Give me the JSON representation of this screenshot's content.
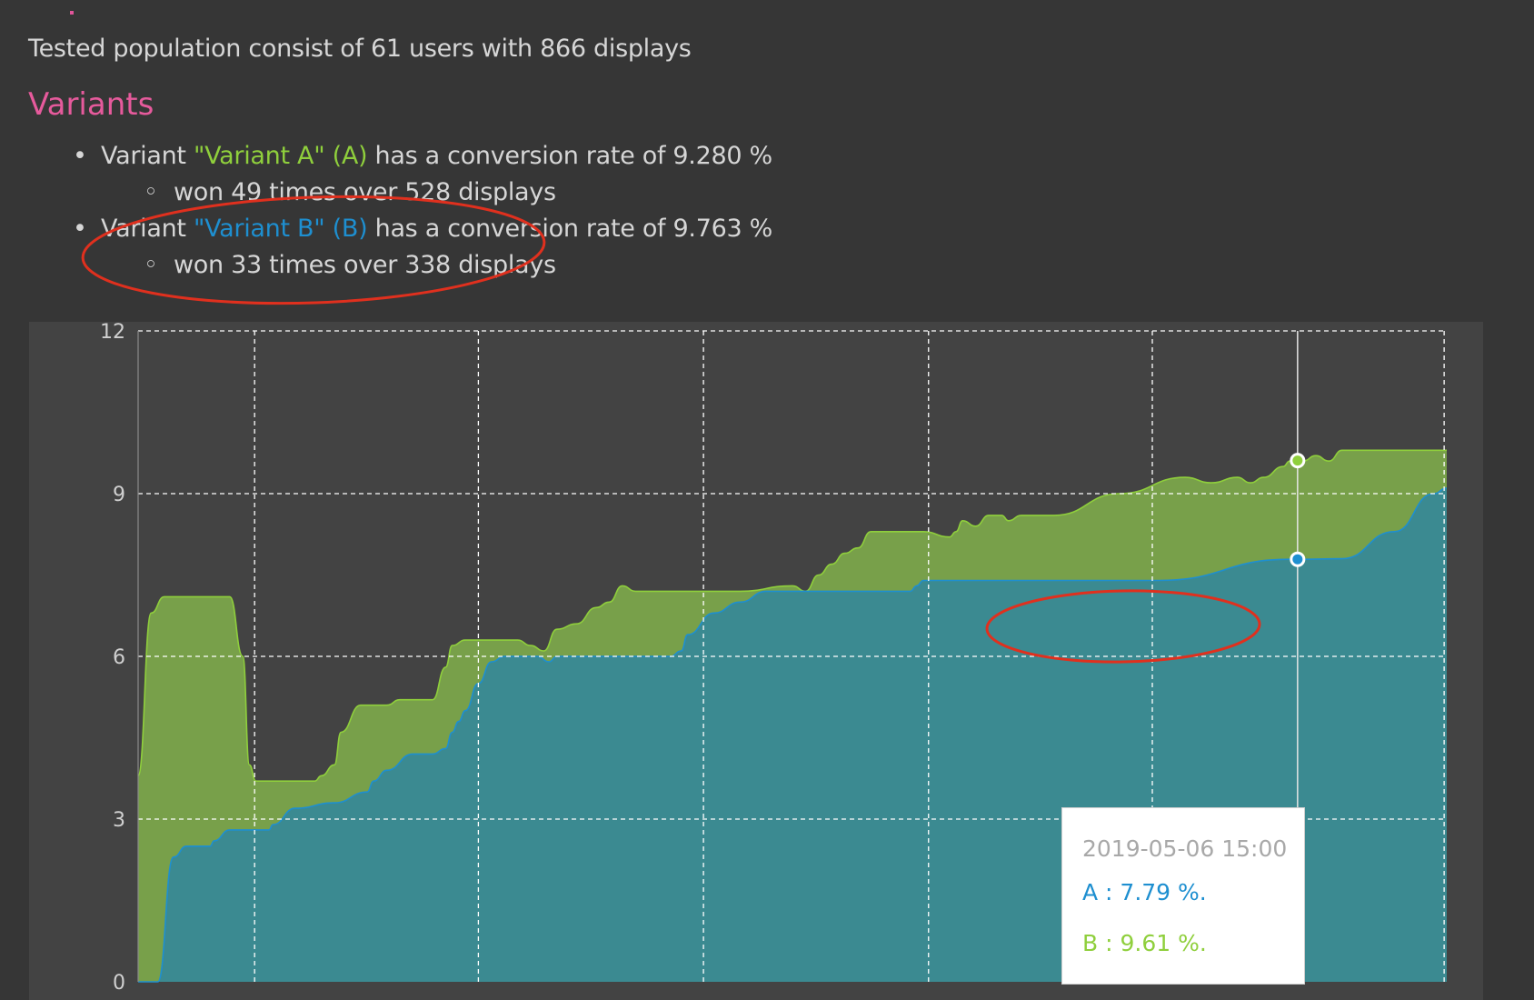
{
  "summary": {
    "prefix": "Tested population consist of ",
    "users": "61",
    "middle": " users with ",
    "displays": "866",
    "suffix": " displays"
  },
  "variants_heading": "Variants",
  "variants": [
    {
      "prefix": "Variant ",
      "name": "\"Variant A\" (A)",
      "rate_text": " has a conversion rate of 9.280 %",
      "won_text": "won 49 times over 528 displays"
    },
    {
      "prefix": "Variant ",
      "name": "\"Variant B\" (B)",
      "rate_text": " has a conversion rate of 9.763 %",
      "won_text": "won 33 times over 338 displays"
    }
  ],
  "tooltip": {
    "date": "2019-05-06 15:00",
    "a_text": "A : 7.79 %.",
    "b_text": "B : 9.61 %."
  },
  "colors": {
    "series_a": "#3b8a91",
    "series_a_line": "#1e8fd0",
    "series_b": "#78a04a",
    "series_b_line": "#8fcf3c",
    "annotation": "#e0301e",
    "accent_heading": "#e65a9c"
  },
  "chart_data": {
    "type": "area",
    "ylim": [
      0,
      12
    ],
    "yticks": [
      "0",
      "3",
      "6",
      "9",
      "12"
    ],
    "xlim": [
      0,
      100
    ],
    "hover_x": 88.6,
    "grid": true,
    "series": [
      {
        "name": "A",
        "x": [
          0,
          1.5,
          2.7,
          3.7,
          5.5,
          5.8,
          7,
          10,
          10.3,
          12,
          15,
          17.5,
          18,
          19,
          21,
          22.5,
          23.5,
          24,
          24.5,
          25,
          26,
          27,
          28,
          29,
          30.5,
          31.4,
          32,
          33.5,
          36,
          40,
          40.7,
          41.5,
          42,
          44,
          46,
          48,
          50,
          54,
          55,
          57,
          59,
          59.5,
          60,
          61,
          62,
          63,
          64,
          70,
          78,
          88,
          88.6,
          92,
          96,
          99,
          100
        ],
        "values": [
          0,
          0,
          2.3,
          2.5,
          2.5,
          2.6,
          2.8,
          2.8,
          2.9,
          3.2,
          3.3,
          3.5,
          3.7,
          3.9,
          4.2,
          4.2,
          4.3,
          4.6,
          4.8,
          5.0,
          5.5,
          5.9,
          6.0,
          6.0,
          6.0,
          5.9,
          6.0,
          6.0,
          6.0,
          6.0,
          6.0,
          6.1,
          6.4,
          6.8,
          7.0,
          7.2,
          7.2,
          7.2,
          7.2,
          7.2,
          7.2,
          7.3,
          7.4,
          7.4,
          7.4,
          7.4,
          7.4,
          7.4,
          7.4,
          7.79,
          7.79,
          7.8,
          8.3,
          9.0,
          9.1
        ]
      },
      {
        "name": "B",
        "x": [
          0,
          1,
          2,
          3,
          7,
          8,
          8.5,
          9,
          10,
          13,
          13.5,
          14,
          15,
          15.5,
          17,
          18,
          19,
          20,
          22.5,
          23.5,
          24,
          25,
          28,
          29,
          30,
          31,
          32,
          33.5,
          35,
          36,
          37,
          38,
          39,
          40,
          46,
          50,
          51,
          52,
          53,
          54,
          55,
          56,
          57,
          58,
          60,
          62,
          62.5,
          63,
          64,
          65,
          66,
          66.5,
          67.5,
          70,
          75,
          80,
          82,
          84,
          85,
          86,
          87.5,
          88,
          88.6,
          89,
          90,
          91,
          92,
          100
        ],
        "values": [
          3.8,
          6.8,
          7.1,
          7.1,
          7.1,
          6.0,
          4.0,
          3.7,
          3.7,
          3.7,
          3.7,
          3.8,
          4.0,
          4.6,
          5.1,
          5.1,
          5.1,
          5.2,
          5.2,
          5.8,
          6.2,
          6.3,
          6.3,
          6.3,
          6.2,
          6.1,
          6.5,
          6.6,
          6.9,
          7.0,
          7.3,
          7.2,
          7.2,
          7.2,
          7.2,
          7.3,
          7.2,
          7.5,
          7.7,
          7.9,
          8.0,
          8.3,
          8.3,
          8.3,
          8.3,
          8.2,
          8.3,
          8.5,
          8.4,
          8.6,
          8.6,
          8.5,
          8.6,
          8.6,
          9.0,
          9.3,
          9.2,
          9.3,
          9.2,
          9.3,
          9.5,
          9.6,
          9.61,
          9.6,
          9.7,
          9.6,
          9.8,
          9.8
        ]
      }
    ]
  }
}
